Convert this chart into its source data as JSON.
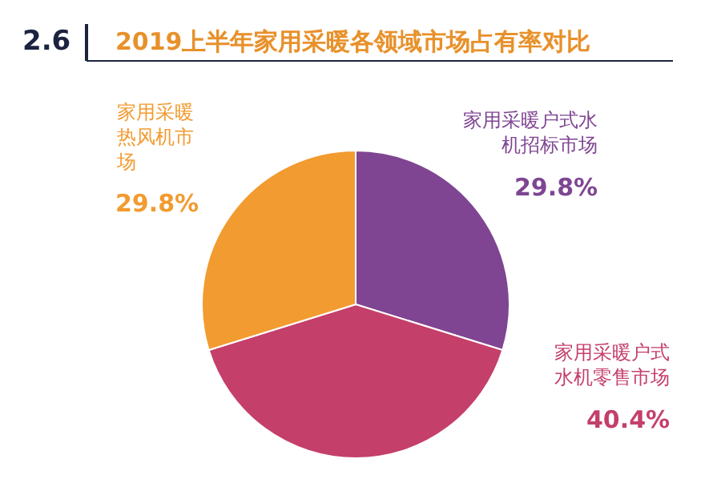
{
  "chart_data": {
    "type": "pie",
    "title": "2019上半年家用采暖各领域市场占有率对比",
    "annotations": [
      "2.6"
    ],
    "categories": [
      "家用采暖户式水机招标市场",
      "家用采暖户式水机零售市场",
      "家用采暖热风机市场"
    ],
    "values": [
      29.8,
      40.4,
      29.8
    ],
    "colors": [
      "#7f4592",
      "#c43f6a",
      "#f29b30"
    ],
    "value_labels": [
      "29.8%",
      "40.4%",
      "29.8%"
    ],
    "legend": false
  }
}
